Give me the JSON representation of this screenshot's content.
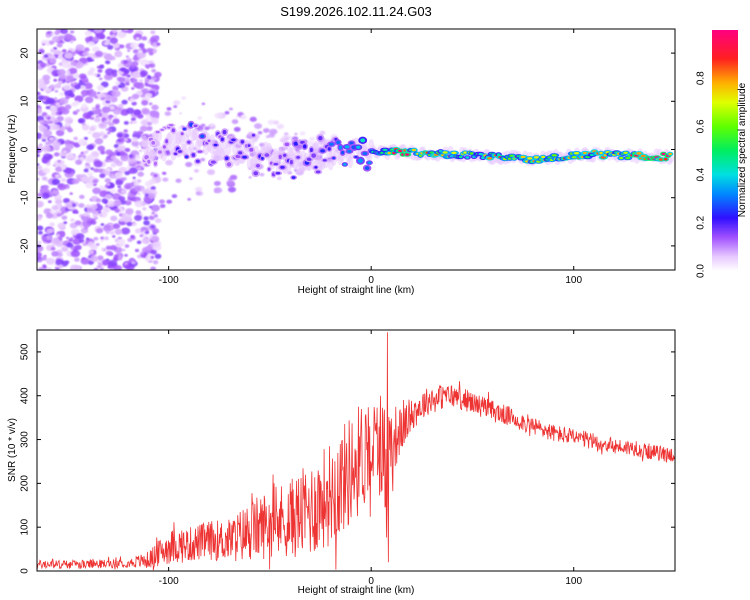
{
  "title": "S199.2026.102.11.24.G03",
  "colors": {
    "snr_line": "#ee3333",
    "frame": "#000000",
    "background": "#ffffff",
    "ridge_dark": "#6010d0",
    "ridge_light": "#c9a8f0"
  },
  "chart_data": [
    {
      "type": "heatmap",
      "name": "spectrogram",
      "xlabel": "Height of straight line (km)",
      "ylabel": "Frequency (Hz)",
      "xlim": [
        -165,
        150
      ],
      "ylim": [
        -25,
        25
      ],
      "xticks": [
        -100,
        0,
        100
      ],
      "yticks": [
        -20,
        -10,
        0,
        10,
        20
      ],
      "xtick_labels": [
        "-100",
        "0",
        "100"
      ],
      "ytick_labels": [
        "-20",
        "-10",
        "0",
        "10",
        "20"
      ],
      "ridge": {
        "description_points": [
          {
            "x": -110,
            "freq": 0.5,
            "amp": 0.1
          },
          {
            "x": -90,
            "freq": 1.5,
            "amp": 0.25
          },
          {
            "x": -70,
            "freq": 0.0,
            "amp": 0.2
          },
          {
            "x": -40,
            "freq": -2.5,
            "amp": 0.2
          },
          {
            "x": -20,
            "freq": -1.0,
            "amp": 0.25
          },
          {
            "x": 0,
            "freq": -0.5,
            "amp": 0.4
          },
          {
            "x": 15,
            "freq": -0.5,
            "amp": 0.95
          },
          {
            "x": 40,
            "freq": -1.0,
            "amp": 0.6
          },
          {
            "x": 80,
            "freq": -2.0,
            "amp": 0.8
          },
          {
            "x": 110,
            "freq": -1.0,
            "amp": 0.7
          },
          {
            "x": 140,
            "freq": -1.5,
            "amp": 0.95
          }
        ]
      },
      "colorbar": {
        "label": "Normalized spectral amplitude",
        "range": [
          0.0,
          1.0
        ],
        "ticks": [
          0.0,
          0.2,
          0.4,
          0.6,
          0.8
        ],
        "tick_labels": [
          "0.0",
          "0.2",
          "0.4",
          "0.6",
          "0.8"
        ]
      }
    },
    {
      "type": "line",
      "name": "snr",
      "xlabel": "Height of straight line (km)",
      "ylabel": "SNR (10 * v/v)",
      "xlim": [
        -165,
        150
      ],
      "ylim": [
        0,
        550
      ],
      "xticks": [
        -100,
        0,
        100
      ],
      "yticks": [
        0,
        100,
        200,
        300,
        400,
        500
      ],
      "xtick_labels": [
        "-100",
        "0",
        "100"
      ],
      "ytick_labels": [
        "0",
        "100",
        "200",
        "300",
        "400",
        "500"
      ],
      "series": [
        {
          "name": "SNR",
          "x": [
            -165,
            -140,
            -120,
            -110,
            -100,
            -90,
            -80,
            -70,
            -60,
            -50,
            -40,
            -30,
            -20,
            -10,
            -5,
            0,
            5,
            8,
            10,
            15,
            20,
            30,
            40,
            50,
            60,
            70,
            80,
            90,
            100,
            110,
            120,
            130,
            140,
            150
          ],
          "center": [
            15,
            15,
            18,
            25,
            55,
            60,
            70,
            70,
            90,
            110,
            120,
            140,
            180,
            230,
            260,
            290,
            280,
            250,
            300,
            320,
            360,
            395,
            400,
            385,
            365,
            350,
            330,
            315,
            305,
            295,
            285,
            280,
            270,
            265
          ],
          "noise": [
            10,
            10,
            10,
            20,
            40,
            40,
            45,
            50,
            70,
            80,
            90,
            110,
            120,
            130,
            130,
            120,
            110,
            150,
            90,
            50,
            40,
            30,
            28,
            25,
            25,
            22,
            22,
            20,
            20,
            20,
            18,
            18,
            18,
            18
          ]
        }
      ],
      "spikes": [
        {
          "x": 8,
          "y": 545
        },
        {
          "x": 8.5,
          "y": 20
        }
      ]
    }
  ]
}
